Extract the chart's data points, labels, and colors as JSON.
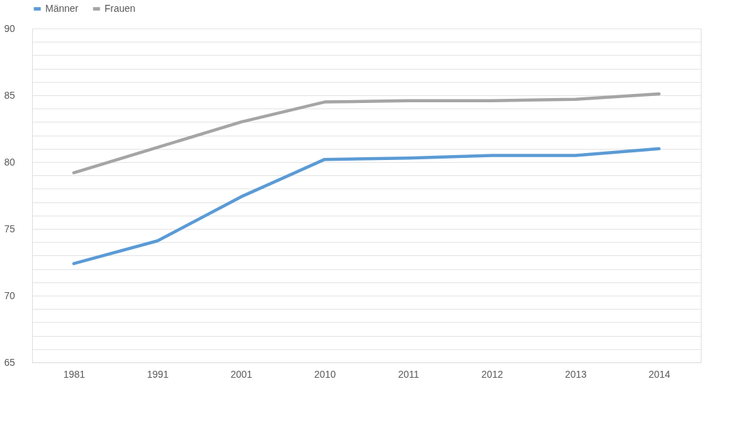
{
  "chart_data": {
    "type": "line",
    "categories": [
      "1981",
      "1991",
      "2001",
      "2010",
      "2011",
      "2012",
      "2013",
      "2014"
    ],
    "series": [
      {
        "name": "Männer",
        "color": "#5b9bd5",
        "values": [
          72.4,
          74.1,
          77.4,
          80.2,
          80.3,
          80.5,
          80.5,
          81.0
        ]
      },
      {
        "name": "Frauen",
        "color": "#a5a5a5",
        "values": [
          79.2,
          81.1,
          83.0,
          84.5,
          84.6,
          84.6,
          84.7,
          85.1
        ]
      }
    ],
    "ylim": [
      65,
      90
    ],
    "yticks": [
      65,
      {
        "value": 66,
        "label": null
      },
      {
        "value": 67,
        "label": null
      },
      {
        "value": 68,
        "label": null
      },
      {
        "value": 69,
        "label": null
      },
      70,
      {
        "value": 71,
        "label": null
      },
      {
        "value": 72,
        "label": null
      },
      {
        "value": 73,
        "label": null
      },
      {
        "value": 74,
        "label": null
      },
      75,
      {
        "value": 76,
        "label": null
      },
      {
        "value": 77,
        "label": null
      },
      {
        "value": 78,
        "label": null
      },
      {
        "value": 79,
        "label": null
      },
      80,
      {
        "value": 81,
        "label": null
      },
      {
        "value": 82,
        "label": null
      },
      {
        "value": 83,
        "label": null
      },
      {
        "value": 84,
        "label": null
      },
      85,
      {
        "value": 86,
        "label": null
      },
      {
        "value": 87,
        "label": null
      },
      {
        "value": 88,
        "label": null
      },
      {
        "value": 89,
        "label": null
      },
      90
    ],
    "grid": true,
    "legend": "top",
    "marker": "none",
    "line_style": "solid"
  }
}
